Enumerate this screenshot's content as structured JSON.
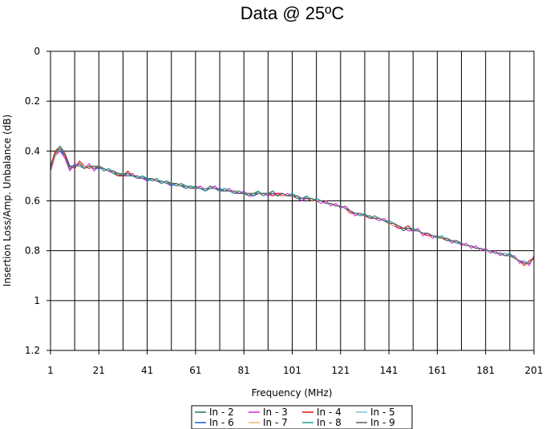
{
  "chart_data": {
    "type": "line",
    "title": "Data @ 25ºC",
    "xlabel": "Frequency (MHz)",
    "ylabel": "Insertion Loss/Amp. Unbalance (dB)",
    "xlim": [
      1,
      201
    ],
    "ylim": [
      0,
      1.2
    ],
    "y_inverted": true,
    "grid": true,
    "legend_position": "bottom",
    "x_ticks": [
      "1",
      "21",
      "41",
      "61",
      "81",
      "101",
      "121",
      "141",
      "161",
      "181",
      "201"
    ],
    "y_ticks": [
      "0",
      "0.2",
      "0.4",
      "0.6",
      "0.8",
      "1",
      "1.2"
    ],
    "x": [
      1,
      3,
      5,
      7,
      9,
      11,
      13,
      15,
      17,
      19,
      21,
      23,
      25,
      27,
      29,
      31,
      33,
      35,
      37,
      39,
      41,
      43,
      45,
      47,
      49,
      51,
      53,
      55,
      57,
      59,
      61,
      63,
      65,
      67,
      69,
      71,
      73,
      75,
      77,
      79,
      81,
      83,
      85,
      87,
      89,
      91,
      93,
      95,
      97,
      99,
      101,
      103,
      105,
      107,
      109,
      111,
      113,
      115,
      117,
      119,
      121,
      123,
      125,
      127,
      129,
      131,
      133,
      135,
      137,
      139,
      141,
      143,
      145,
      147,
      149,
      151,
      153,
      155,
      157,
      159,
      161,
      163,
      165,
      167,
      169,
      171,
      173,
      175,
      177,
      179,
      181,
      183,
      185,
      187,
      189,
      191,
      193,
      195,
      197,
      199,
      201
    ],
    "series": [
      {
        "name": "In - 2",
        "color": "#1f7a4c",
        "values": [
          0.47,
          0.41,
          0.39,
          0.42,
          0.47,
          0.46,
          0.45,
          0.47,
          0.46,
          0.47,
          0.46,
          0.48,
          0.47,
          0.49,
          0.5,
          0.49,
          0.49,
          0.5,
          0.51,
          0.5,
          0.51,
          0.52,
          0.51,
          0.53,
          0.52,
          0.53,
          0.54,
          0.53,
          0.54,
          0.55,
          0.54,
          0.55,
          0.56,
          0.54,
          0.55,
          0.56,
          0.55,
          0.56,
          0.57,
          0.56,
          0.57,
          0.58,
          0.57,
          0.56,
          0.58,
          0.57,
          0.56,
          0.58,
          0.57,
          0.58,
          0.57,
          0.59,
          0.6,
          0.58,
          0.6,
          0.59,
          0.6,
          0.61,
          0.61,
          0.62,
          0.62,
          0.63,
          0.64,
          0.65,
          0.66,
          0.65,
          0.67,
          0.66,
          0.67,
          0.68,
          0.68,
          0.69,
          0.7,
          0.72,
          0.71,
          0.71,
          0.72,
          0.73,
          0.74,
          0.74,
          0.75,
          0.74,
          0.76,
          0.76,
          0.77,
          0.77,
          0.78,
          0.78,
          0.79,
          0.79,
          0.8,
          0.8,
          0.81,
          0.81,
          0.82,
          0.81,
          0.83,
          0.84,
          0.85,
          0.85,
          0.83
        ]
      },
      {
        "name": "In - 3",
        "color": "#e020e0",
        "values": [
          0.48,
          0.42,
          0.4,
          0.43,
          0.48,
          0.45,
          0.46,
          0.47,
          0.45,
          0.48,
          0.46,
          0.47,
          0.48,
          0.49,
          0.49,
          0.5,
          0.5,
          0.49,
          0.51,
          0.51,
          0.52,
          0.51,
          0.52,
          0.52,
          0.53,
          0.54,
          0.53,
          0.54,
          0.55,
          0.54,
          0.55,
          0.54,
          0.56,
          0.55,
          0.54,
          0.56,
          0.56,
          0.55,
          0.57,
          0.57,
          0.56,
          0.58,
          0.58,
          0.57,
          0.57,
          0.58,
          0.57,
          0.57,
          0.58,
          0.57,
          0.58,
          0.58,
          0.6,
          0.59,
          0.59,
          0.6,
          0.61,
          0.6,
          0.62,
          0.61,
          0.63,
          0.62,
          0.64,
          0.66,
          0.65,
          0.66,
          0.66,
          0.67,
          0.68,
          0.67,
          0.69,
          0.7,
          0.71,
          0.71,
          0.72,
          0.72,
          0.71,
          0.74,
          0.73,
          0.75,
          0.74,
          0.75,
          0.75,
          0.77,
          0.76,
          0.78,
          0.77,
          0.79,
          0.78,
          0.8,
          0.79,
          0.81,
          0.8,
          0.82,
          0.81,
          0.82,
          0.82,
          0.85,
          0.84,
          0.86,
          0.82
        ]
      },
      {
        "name": "In - 4",
        "color": "#e01010",
        "values": [
          0.46,
          0.4,
          0.38,
          0.41,
          0.46,
          0.47,
          0.44,
          0.46,
          0.47,
          0.46,
          0.47,
          0.47,
          0.48,
          0.48,
          0.5,
          0.5,
          0.48,
          0.5,
          0.5,
          0.51,
          0.51,
          0.52,
          0.52,
          0.53,
          0.52,
          0.53,
          0.53,
          0.54,
          0.54,
          0.55,
          0.55,
          0.55,
          0.55,
          0.55,
          0.55,
          0.55,
          0.56,
          0.56,
          0.56,
          0.57,
          0.57,
          0.57,
          0.58,
          0.57,
          0.57,
          0.57,
          0.58,
          0.57,
          0.57,
          0.58,
          0.58,
          0.59,
          0.59,
          0.59,
          0.6,
          0.6,
          0.6,
          0.61,
          0.61,
          0.62,
          0.62,
          0.63,
          0.65,
          0.65,
          0.65,
          0.66,
          0.67,
          0.67,
          0.67,
          0.68,
          0.69,
          0.69,
          0.71,
          0.71,
          0.7,
          0.72,
          0.72,
          0.73,
          0.74,
          0.74,
          0.75,
          0.75,
          0.76,
          0.76,
          0.76,
          0.77,
          0.78,
          0.78,
          0.79,
          0.79,
          0.8,
          0.8,
          0.81,
          0.81,
          0.82,
          0.82,
          0.83,
          0.84,
          0.86,
          0.84,
          0.83
        ]
      },
      {
        "name": "In - 5",
        "color": "#80c0e0",
        "values": [
          0.47,
          0.42,
          0.39,
          0.42,
          0.47,
          0.46,
          0.46,
          0.46,
          0.46,
          0.47,
          0.46,
          0.48,
          0.47,
          0.48,
          0.49,
          0.49,
          0.5,
          0.5,
          0.5,
          0.51,
          0.51,
          0.51,
          0.52,
          0.52,
          0.53,
          0.53,
          0.54,
          0.54,
          0.54,
          0.54,
          0.55,
          0.55,
          0.55,
          0.55,
          0.55,
          0.56,
          0.56,
          0.56,
          0.56,
          0.56,
          0.57,
          0.57,
          0.57,
          0.57,
          0.58,
          0.57,
          0.57,
          0.58,
          0.57,
          0.58,
          0.57,
          0.58,
          0.59,
          0.59,
          0.59,
          0.6,
          0.6,
          0.61,
          0.61,
          0.62,
          0.62,
          0.63,
          0.64,
          0.65,
          0.66,
          0.66,
          0.66,
          0.67,
          0.67,
          0.68,
          0.69,
          0.7,
          0.7,
          0.71,
          0.71,
          0.72,
          0.72,
          0.73,
          0.73,
          0.74,
          0.75,
          0.75,
          0.75,
          0.76,
          0.77,
          0.77,
          0.78,
          0.78,
          0.79,
          0.79,
          0.8,
          0.8,
          0.81,
          0.81,
          0.81,
          0.82,
          0.83,
          0.84,
          0.84,
          0.85,
          0.83
        ]
      },
      {
        "name": "In - 6",
        "color": "#1060e0",
        "values": [
          0.47,
          0.41,
          0.4,
          0.42,
          0.46,
          0.46,
          0.45,
          0.47,
          0.46,
          0.47,
          0.47,
          0.47,
          0.48,
          0.48,
          0.49,
          0.5,
          0.49,
          0.5,
          0.51,
          0.5,
          0.52,
          0.51,
          0.52,
          0.53,
          0.52,
          0.54,
          0.53,
          0.54,
          0.55,
          0.54,
          0.55,
          0.55,
          0.56,
          0.55,
          0.55,
          0.55,
          0.56,
          0.56,
          0.56,
          0.57,
          0.57,
          0.57,
          0.58,
          0.57,
          0.57,
          0.57,
          0.57,
          0.58,
          0.57,
          0.58,
          0.58,
          0.58,
          0.59,
          0.59,
          0.59,
          0.6,
          0.6,
          0.61,
          0.61,
          0.62,
          0.62,
          0.63,
          0.64,
          0.65,
          0.65,
          0.66,
          0.66,
          0.67,
          0.67,
          0.68,
          0.69,
          0.7,
          0.7,
          0.71,
          0.71,
          0.72,
          0.72,
          0.73,
          0.73,
          0.74,
          0.74,
          0.75,
          0.75,
          0.76,
          0.76,
          0.77,
          0.78,
          0.78,
          0.79,
          0.79,
          0.8,
          0.8,
          0.81,
          0.81,
          0.82,
          0.82,
          0.83,
          0.84,
          0.85,
          0.85,
          0.83
        ]
      },
      {
        "name": "In - 7",
        "color": "#f0b070",
        "values": [
          0.47,
          0.42,
          0.39,
          0.42,
          0.47,
          0.46,
          0.45,
          0.46,
          0.46,
          0.47,
          0.46,
          0.47,
          0.48,
          0.48,
          0.49,
          0.49,
          0.5,
          0.5,
          0.5,
          0.51,
          0.51,
          0.52,
          0.52,
          0.52,
          0.53,
          0.53,
          0.54,
          0.54,
          0.54,
          0.55,
          0.55,
          0.55,
          0.55,
          0.55,
          0.55,
          0.56,
          0.56,
          0.56,
          0.56,
          0.56,
          0.57,
          0.57,
          0.57,
          0.57,
          0.58,
          0.57,
          0.57,
          0.58,
          0.58,
          0.58,
          0.58,
          0.58,
          0.59,
          0.59,
          0.59,
          0.6,
          0.6,
          0.61,
          0.61,
          0.62,
          0.62,
          0.63,
          0.64,
          0.65,
          0.65,
          0.66,
          0.66,
          0.67,
          0.67,
          0.68,
          0.69,
          0.7,
          0.7,
          0.71,
          0.71,
          0.72,
          0.72,
          0.73,
          0.73,
          0.74,
          0.75,
          0.75,
          0.75,
          0.76,
          0.76,
          0.77,
          0.78,
          0.78,
          0.79,
          0.79,
          0.8,
          0.8,
          0.81,
          0.81,
          0.82,
          0.82,
          0.83,
          0.84,
          0.85,
          0.85,
          0.83
        ]
      },
      {
        "name": "In - 8",
        "color": "#20a090",
        "values": [
          0.47,
          0.41,
          0.38,
          0.42,
          0.47,
          0.46,
          0.46,
          0.47,
          0.46,
          0.46,
          0.46,
          0.48,
          0.47,
          0.49,
          0.49,
          0.49,
          0.5,
          0.5,
          0.51,
          0.5,
          0.51,
          0.52,
          0.51,
          0.53,
          0.52,
          0.53,
          0.54,
          0.53,
          0.55,
          0.54,
          0.55,
          0.55,
          0.56,
          0.55,
          0.55,
          0.56,
          0.55,
          0.56,
          0.57,
          0.56,
          0.57,
          0.57,
          0.58,
          0.56,
          0.58,
          0.57,
          0.57,
          0.58,
          0.57,
          0.58,
          0.57,
          0.59,
          0.59,
          0.58,
          0.6,
          0.59,
          0.6,
          0.61,
          0.61,
          0.62,
          0.62,
          0.63,
          0.64,
          0.65,
          0.66,
          0.65,
          0.67,
          0.66,
          0.67,
          0.68,
          0.68,
          0.69,
          0.7,
          0.71,
          0.71,
          0.71,
          0.72,
          0.73,
          0.73,
          0.74,
          0.75,
          0.74,
          0.76,
          0.76,
          0.77,
          0.77,
          0.78,
          0.78,
          0.79,
          0.79,
          0.8,
          0.8,
          0.81,
          0.81,
          0.82,
          0.81,
          0.83,
          0.84,
          0.85,
          0.85,
          0.83
        ]
      },
      {
        "name": "In - 9",
        "color": "#606060",
        "values": [
          0.47,
          0.41,
          0.39,
          0.42,
          0.47,
          0.46,
          0.45,
          0.47,
          0.46,
          0.47,
          0.46,
          0.47,
          0.48,
          0.48,
          0.49,
          0.5,
          0.49,
          0.5,
          0.5,
          0.51,
          0.51,
          0.51,
          0.52,
          0.52,
          0.53,
          0.53,
          0.53,
          0.54,
          0.54,
          0.55,
          0.55,
          0.55,
          0.55,
          0.55,
          0.55,
          0.56,
          0.56,
          0.56,
          0.56,
          0.57,
          0.57,
          0.57,
          0.57,
          0.57,
          0.57,
          0.57,
          0.57,
          0.58,
          0.57,
          0.58,
          0.58,
          0.58,
          0.59,
          0.59,
          0.59,
          0.6,
          0.6,
          0.61,
          0.61,
          0.62,
          0.62,
          0.63,
          0.64,
          0.65,
          0.65,
          0.66,
          0.66,
          0.67,
          0.67,
          0.68,
          0.69,
          0.69,
          0.7,
          0.71,
          0.71,
          0.72,
          0.72,
          0.73,
          0.73,
          0.74,
          0.74,
          0.75,
          0.75,
          0.76,
          0.76,
          0.77,
          0.78,
          0.78,
          0.79,
          0.79,
          0.8,
          0.8,
          0.81,
          0.81,
          0.82,
          0.82,
          0.83,
          0.84,
          0.85,
          0.85,
          0.83
        ]
      }
    ]
  }
}
